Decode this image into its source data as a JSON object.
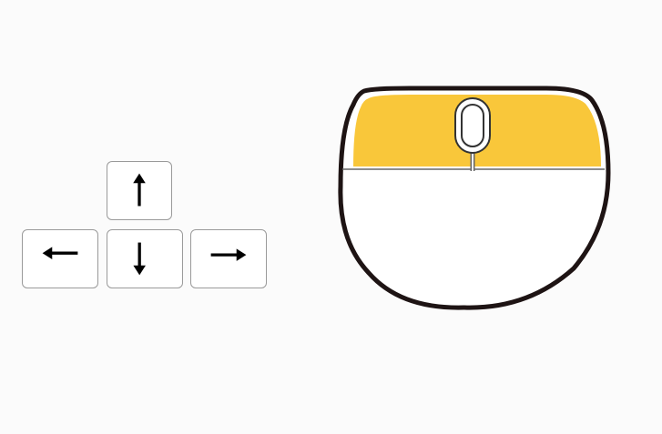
{
  "arrow_keys": [
    {
      "name": "up",
      "icon": "arrow-up-icon"
    },
    {
      "name": "left",
      "icon": "arrow-left-icon"
    },
    {
      "name": "down",
      "icon": "arrow-down-icon"
    },
    {
      "name": "right",
      "icon": "arrow-right-icon"
    }
  ],
  "mouse": {
    "highlighted_part": "buttons",
    "highlight_color": "#f9c73a",
    "body_color": "#ffffff",
    "outline_color": "#1e1414"
  }
}
